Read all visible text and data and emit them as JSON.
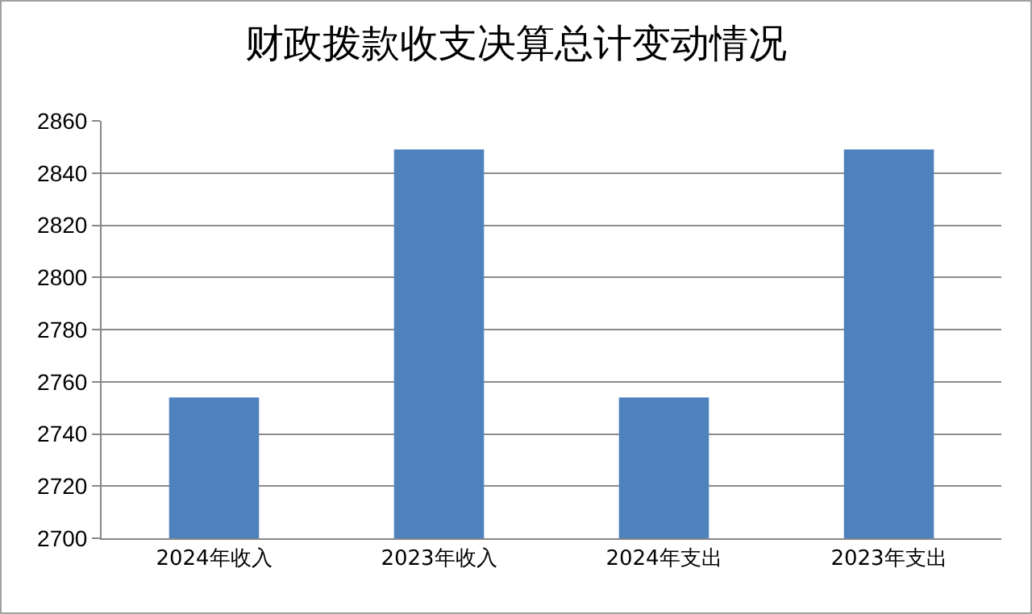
{
  "chart_data": {
    "type": "bar",
    "title": "财政拨款收支决算总计变动情况",
    "categories": [
      "2024年收入",
      "2023年收入",
      "2024年支出",
      "2023年支出"
    ],
    "values": [
      2754,
      2849,
      2754,
      2849
    ],
    "color": "#4f81bd",
    "ylim": [
      2700,
      2860
    ],
    "yticks": [
      2700,
      2720,
      2740,
      2760,
      2780,
      2800,
      2820,
      2840,
      2860
    ],
    "grid": "y"
  }
}
